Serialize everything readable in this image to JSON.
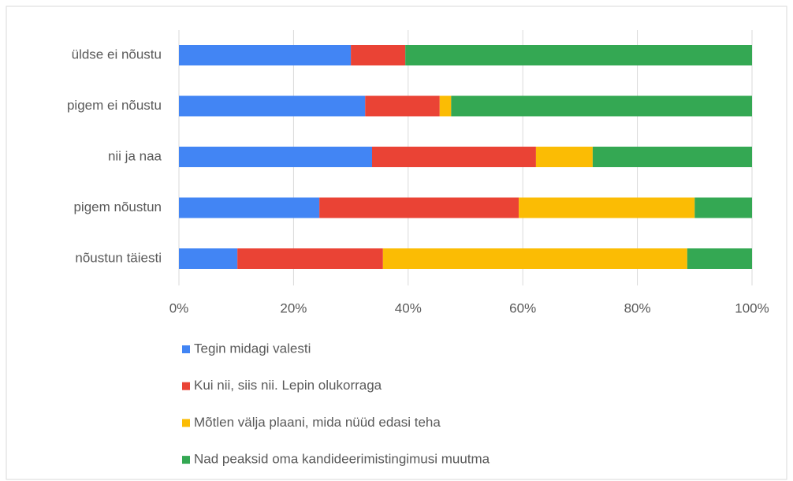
{
  "chart_data": {
    "type": "stacked_bar_horizontal",
    "categories": [
      "üldse ei nõustu",
      "pigem ei nõustu",
      "nii ja naa",
      "pigem nõustun",
      "nõustun täiesti"
    ],
    "series": [
      {
        "name": "Tegin midagi valesti",
        "color": "#4285f4",
        "values": [
          30.0,
          32.5,
          33.7,
          24.5,
          10.2
        ]
      },
      {
        "name": "Kui nii, siis nii. Lepin olukorraga",
        "color": "#ea4335",
        "values": [
          9.5,
          13.0,
          28.6,
          34.8,
          25.4
        ]
      },
      {
        "name": "Mõtlen välja plaani, mida nüüd edasi teha",
        "color": "#fbbc04",
        "values": [
          0,
          2.0,
          9.9,
          30.7,
          53.1
        ]
      },
      {
        "name": "Nad peaksid oma kandideerimistingimusi muutma",
        "color": "#34a853",
        "values": [
          60.5,
          52.5,
          27.8,
          10.0,
          11.3
        ]
      }
    ],
    "xlim": [
      0,
      100
    ],
    "xticks": [
      {
        "value": 0,
        "label": "0%"
      },
      {
        "value": 20,
        "label": "20%"
      },
      {
        "value": 40,
        "label": "40%"
      },
      {
        "value": 60,
        "label": "60%"
      },
      {
        "value": 80,
        "label": "80%"
      },
      {
        "value": 100,
        "label": "100%"
      }
    ],
    "grid": true
  }
}
